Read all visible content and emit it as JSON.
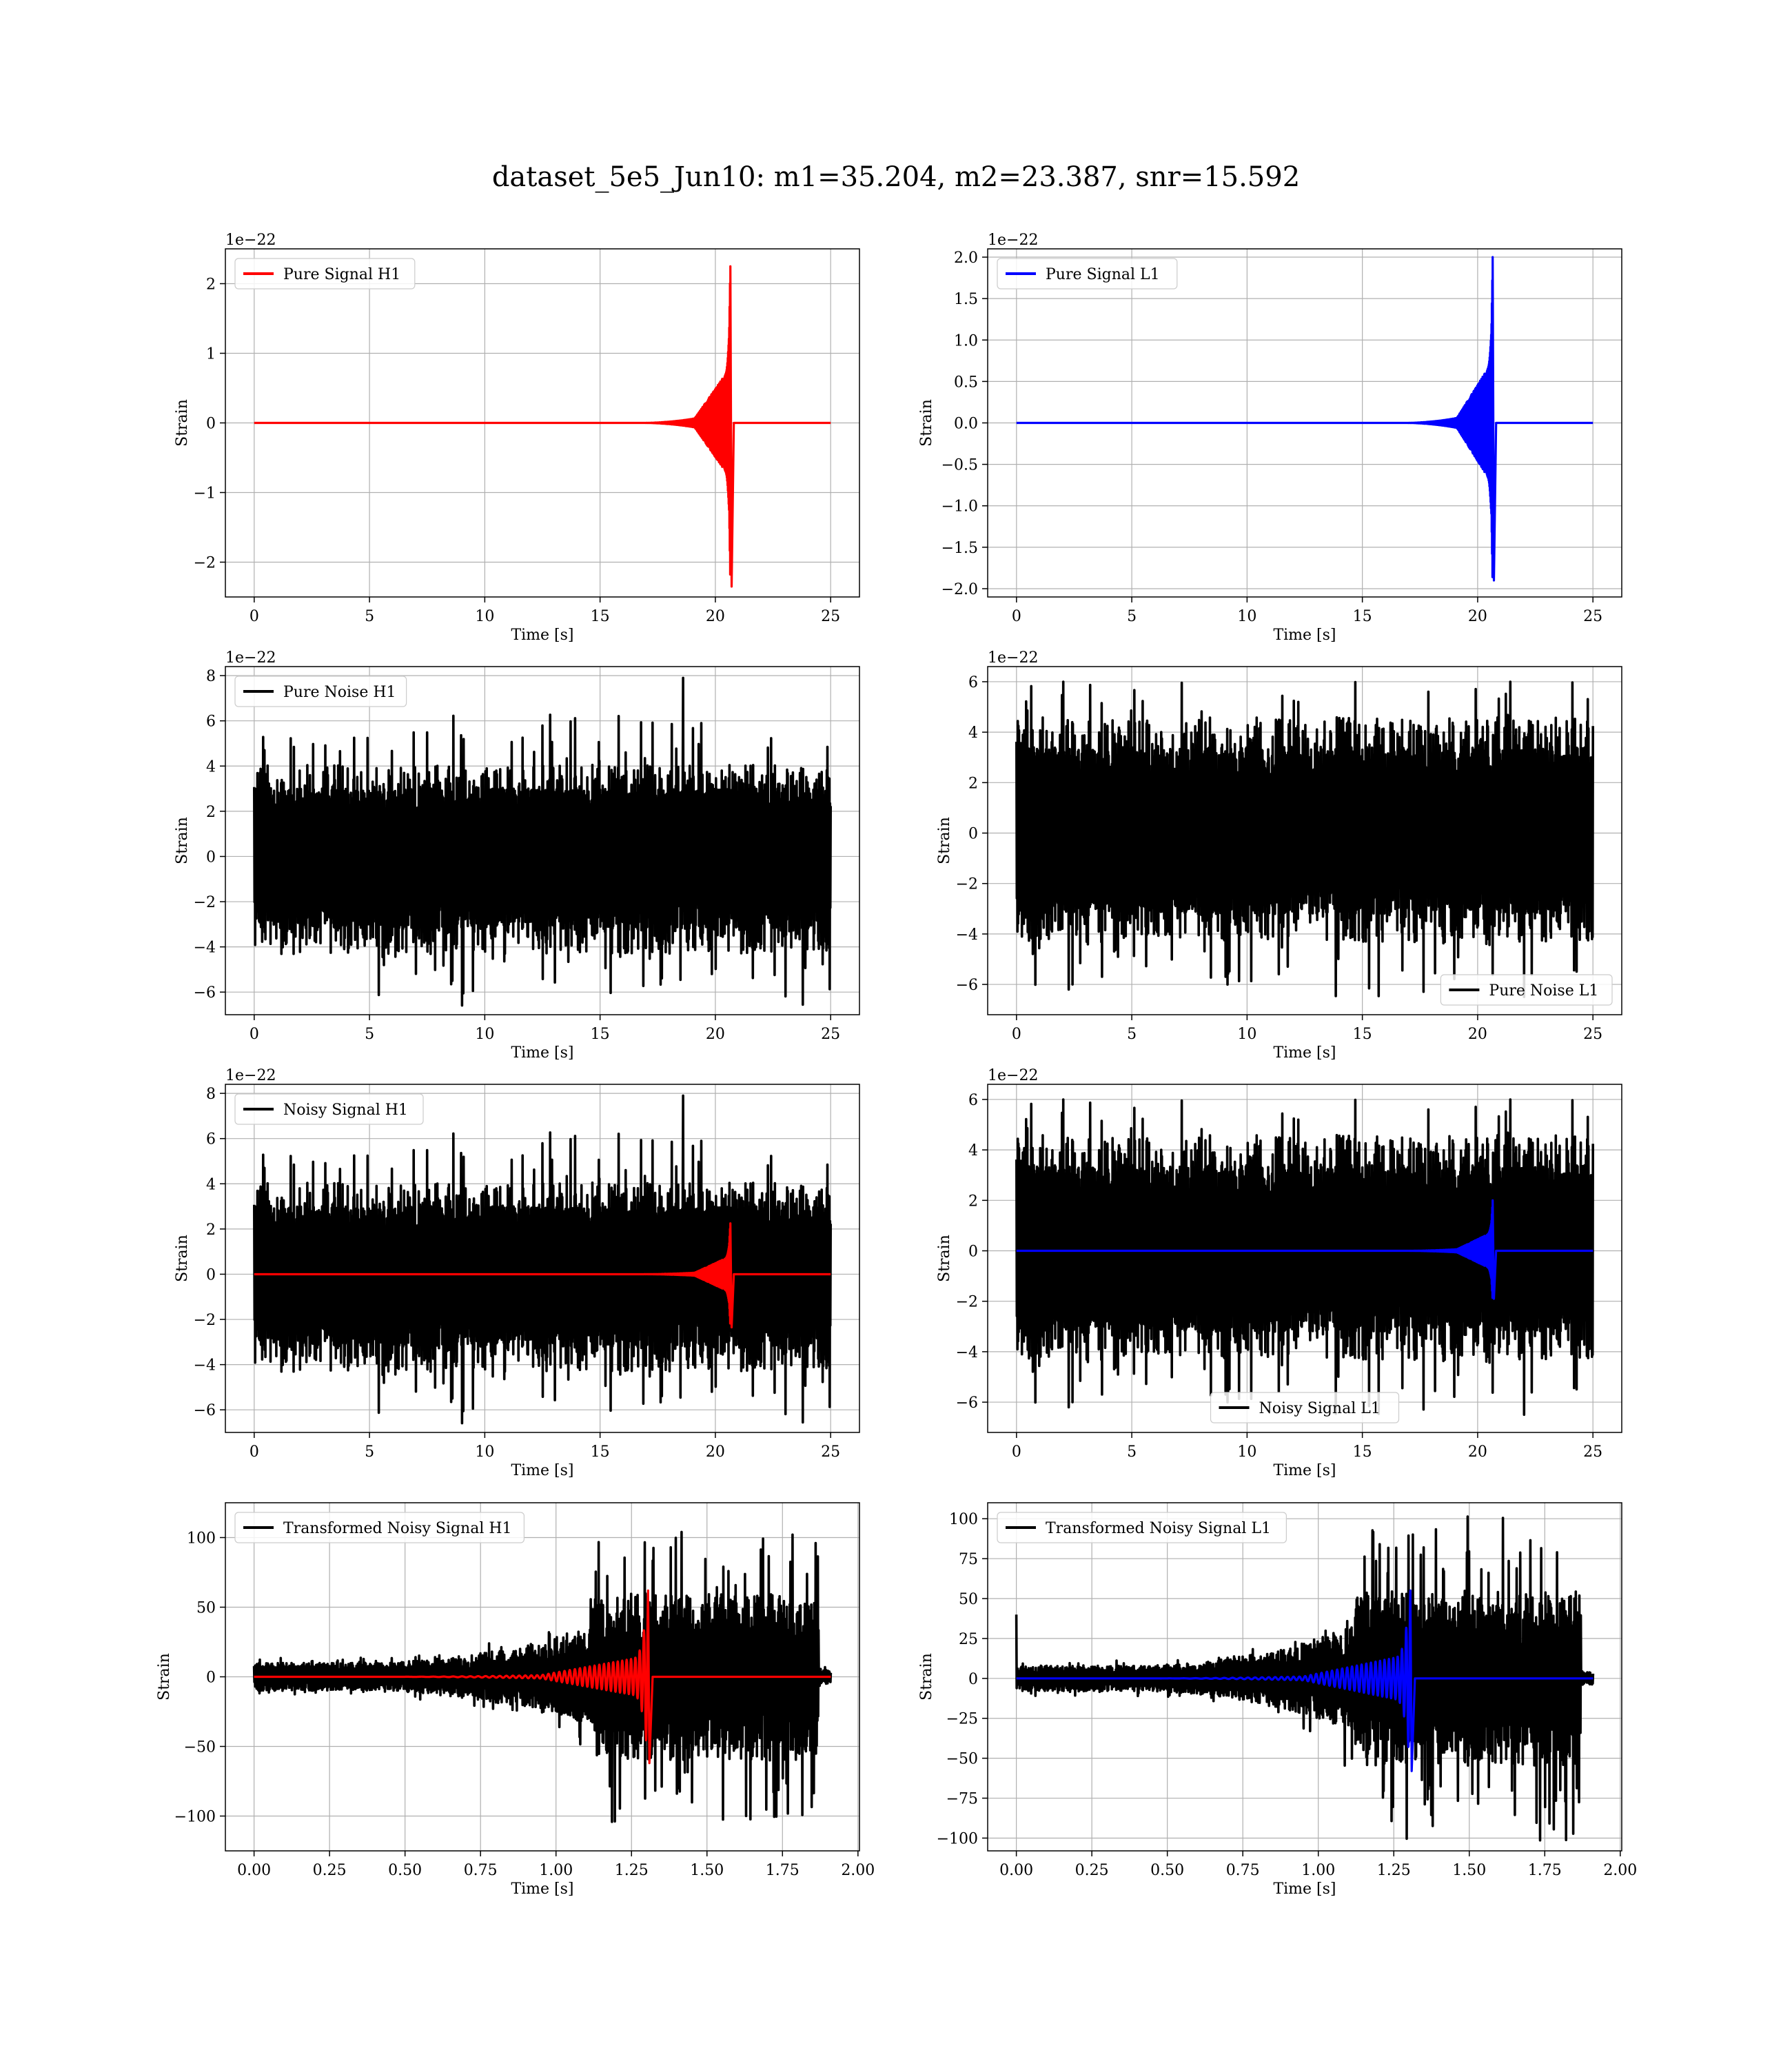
{
  "figure": {
    "suptitle": "dataset_5e5_Jun10: m1=35.204, m2=23.387, snr=15.592"
  },
  "chart_data": [
    {
      "id": "pure-signal-h1",
      "type": "line",
      "xlabel": "Time [s]",
      "ylabel": "Strain",
      "offset_text": "1e−22",
      "xlim": [
        -1.25,
        26.25
      ],
      "ylim": [
        -2.5,
        2.5
      ],
      "xticks": [
        0,
        5,
        10,
        15,
        20,
        25
      ],
      "xtick_labels": [
        "0",
        "5",
        "10",
        "15",
        "20",
        "25"
      ],
      "yticks": [
        -2,
        -1,
        0,
        1,
        2
      ],
      "ytick_labels": [
        "−2",
        "−1",
        "0",
        "1",
        "2"
      ],
      "grid": true,
      "legend": {
        "placement": "upper-left",
        "entries": [
          {
            "label": "Pure Signal H1",
            "color": "#ff0000"
          }
        ]
      },
      "series": [
        {
          "name": "Pure Signal H1",
          "color": "#ff0000",
          "kind": "chirp",
          "x_start": 0,
          "x_end": 25,
          "peak_x": 20.65,
          "peak_top": 2.25,
          "peak_bottom": -2.35,
          "inspiral_amp": 0.8,
          "inspiral_start": 19.1,
          "quiet_amp": 0.0,
          "ringdown_x": 20.8
        }
      ]
    },
    {
      "id": "pure-signal-l1",
      "type": "line",
      "xlabel": "Time [s]",
      "ylabel": "Strain",
      "offset_text": "1e−22",
      "xlim": [
        -1.25,
        26.25
      ],
      "ylim": [
        -2.1,
        2.1
      ],
      "xticks": [
        0,
        5,
        10,
        15,
        20,
        25
      ],
      "xtick_labels": [
        "0",
        "5",
        "10",
        "15",
        "20",
        "25"
      ],
      "yticks": [
        -2.0,
        -1.5,
        -1.0,
        -0.5,
        0.0,
        0.5,
        1.0,
        1.5,
        2.0
      ],
      "ytick_labels": [
        "−2.0",
        "−1.5",
        "−1.0",
        "−0.5",
        "0.0",
        "0.5",
        "1.0",
        "1.5",
        "2.0"
      ],
      "grid": true,
      "legend": {
        "placement": "upper-left",
        "entries": [
          {
            "label": "Pure Signal L1",
            "color": "#0000ff"
          }
        ]
      },
      "series": [
        {
          "name": "Pure Signal L1",
          "color": "#0000ff",
          "kind": "chirp",
          "x_start": 0,
          "x_end": 25,
          "peak_x": 20.65,
          "peak_top": 2.0,
          "peak_bottom": -1.9,
          "inspiral_amp": 0.75,
          "inspiral_start": 19.1,
          "quiet_amp": 0.0,
          "ringdown_x": 20.8
        }
      ]
    },
    {
      "id": "pure-noise-h1",
      "type": "line",
      "xlabel": "Time [s]",
      "ylabel": "Strain",
      "offset_text": "1e−22",
      "xlim": [
        -1.25,
        26.25
      ],
      "ylim": [
        -7.0,
        8.4
      ],
      "xticks": [
        0,
        5,
        10,
        15,
        20,
        25
      ],
      "xtick_labels": [
        "0",
        "5",
        "10",
        "15",
        "20",
        "25"
      ],
      "yticks": [
        -6,
        -4,
        -2,
        0,
        2,
        4,
        6,
        8
      ],
      "ytick_labels": [
        "−6",
        "−4",
        "−2",
        "0",
        "2",
        "4",
        "6",
        "8"
      ],
      "grid": true,
      "legend": {
        "placement": "upper-left",
        "entries": [
          {
            "label": "Pure Noise H1",
            "color": "#000000"
          }
        ]
      },
      "series": [
        {
          "name": "Pure Noise H1",
          "color": "#000000",
          "kind": "noise",
          "x_start": 0,
          "x_end": 25,
          "core_top": 3.0,
          "core_bottom": -3.2,
          "spike_max": 6.3,
          "spike_min": -6.6,
          "outlier_x": 18.6,
          "outlier_y": 7.9,
          "seed": 11
        }
      ]
    },
    {
      "id": "pure-noise-l1",
      "type": "line",
      "xlabel": "Time [s]",
      "ylabel": "Strain",
      "offset_text": "1e−22",
      "xlim": [
        -1.25,
        26.25
      ],
      "ylim": [
        -7.2,
        6.6
      ],
      "xticks": [
        0,
        5,
        10,
        15,
        20,
        25
      ],
      "xtick_labels": [
        "0",
        "5",
        "10",
        "15",
        "20",
        "25"
      ],
      "yticks": [
        -6,
        -4,
        -2,
        0,
        2,
        4,
        6
      ],
      "ytick_labels": [
        "−6",
        "−4",
        "−2",
        "0",
        "2",
        "4",
        "6"
      ],
      "grid": true,
      "legend": {
        "placement": "lower-right",
        "entries": [
          {
            "label": "Pure Noise L1",
            "color": "#000000"
          }
        ]
      },
      "series": [
        {
          "name": "Pure Noise L1",
          "color": "#000000",
          "kind": "noise",
          "x_start": 0,
          "x_end": 25,
          "core_top": 3.4,
          "core_bottom": -3.2,
          "spike_max": 6.0,
          "spike_min": -6.5,
          "outlier_x": -1,
          "outlier_y": 0,
          "seed": 23
        }
      ]
    },
    {
      "id": "noisy-signal-h1",
      "type": "line",
      "xlabel": "Time [s]",
      "ylabel": "Strain",
      "offset_text": "1e−22",
      "xlim": [
        -1.25,
        26.25
      ],
      "ylim": [
        -7.0,
        8.4
      ],
      "xticks": [
        0,
        5,
        10,
        15,
        20,
        25
      ],
      "xtick_labels": [
        "0",
        "5",
        "10",
        "15",
        "20",
        "25"
      ],
      "yticks": [
        -6,
        -4,
        -2,
        0,
        2,
        4,
        6,
        8
      ],
      "ytick_labels": [
        "−6",
        "−4",
        "−2",
        "0",
        "2",
        "4",
        "6",
        "8"
      ],
      "grid": true,
      "legend": {
        "placement": "upper-left",
        "entries": [
          {
            "label": "Noisy Signal H1",
            "color": "#000000"
          }
        ]
      },
      "series": [
        {
          "name": "Noisy Signal H1",
          "color": "#000000",
          "kind": "noise",
          "x_start": 0,
          "x_end": 25,
          "core_top": 3.0,
          "core_bottom": -3.2,
          "spike_max": 6.3,
          "spike_min": -6.6,
          "outlier_x": 18.6,
          "outlier_y": 7.9,
          "seed": 11
        },
        {
          "name": "",
          "color": "#ff0000",
          "kind": "chirp",
          "x_start": 0,
          "x_end": 25,
          "peak_x": 20.65,
          "peak_top": 2.25,
          "peak_bottom": -2.35,
          "inspiral_amp": 0.8,
          "inspiral_start": 19.1,
          "quiet_amp": 0.0,
          "ringdown_x": 20.8
        }
      ]
    },
    {
      "id": "noisy-signal-l1",
      "type": "line",
      "xlabel": "Time [s]",
      "ylabel": "Strain",
      "offset_text": "1e−22",
      "xlim": [
        -1.25,
        26.25
      ],
      "ylim": [
        -7.2,
        6.6
      ],
      "xticks": [
        0,
        5,
        10,
        15,
        20,
        25
      ],
      "xtick_labels": [
        "0",
        "5",
        "10",
        "15",
        "20",
        "25"
      ],
      "yticks": [
        -6,
        -4,
        -2,
        0,
        2,
        4,
        6
      ],
      "ytick_labels": [
        "−6",
        "−4",
        "−2",
        "0",
        "2",
        "4",
        "6"
      ],
      "grid": true,
      "legend": {
        "placement": "lower-center",
        "entries": [
          {
            "label": "Noisy Signal L1",
            "color": "#000000"
          }
        ]
      },
      "series": [
        {
          "name": "Noisy Signal L1",
          "color": "#000000",
          "kind": "noise",
          "x_start": 0,
          "x_end": 25,
          "core_top": 3.4,
          "core_bottom": -3.2,
          "spike_max": 6.0,
          "spike_min": -6.5,
          "outlier_x": -1,
          "outlier_y": 0,
          "seed": 23
        },
        {
          "name": "",
          "color": "#0000ff",
          "kind": "chirp",
          "x_start": 0,
          "x_end": 25,
          "peak_x": 20.65,
          "peak_top": 2.0,
          "peak_bottom": -1.9,
          "inspiral_amp": 0.75,
          "inspiral_start": 19.1,
          "quiet_amp": 0.0,
          "ringdown_x": 20.8
        }
      ]
    },
    {
      "id": "transformed-noisy-signal-h1",
      "type": "line",
      "xlabel": "Time [s]",
      "ylabel": "Strain",
      "offset_text": "",
      "xlim": [
        -0.095,
        2.005
      ],
      "ylim": [
        -125,
        125
      ],
      "xticks": [
        0.0,
        0.25,
        0.5,
        0.75,
        1.0,
        1.25,
        1.5,
        1.75,
        2.0
      ],
      "xtick_labels": [
        "0.00",
        "0.25",
        "0.50",
        "0.75",
        "1.00",
        "1.25",
        "1.50",
        "1.75",
        "2.00"
      ],
      "yticks": [
        -100,
        -50,
        0,
        50,
        100
      ],
      "ytick_labels": [
        "−100",
        "−50",
        "0",
        "50",
        "100"
      ],
      "grid": true,
      "legend": {
        "placement": "upper-left",
        "entries": [
          {
            "label": "Transformed Noisy Signal H1",
            "color": "#000000"
          }
        ]
      },
      "series": [
        {
          "name": "Transformed Noisy Signal H1",
          "color": "#000000",
          "kind": "whitened",
          "x_start": 0,
          "x_end": 1.91,
          "low_amp": 10,
          "high_amp": 60,
          "ramp_start": 0.35,
          "ramp_end": 1.12,
          "max_spike": 105,
          "drop_x": 1.87,
          "tail_amp": 5,
          "seed": 37
        },
        {
          "name": "",
          "color": "#ff0000",
          "kind": "chirp",
          "x_start": 0,
          "x_end": 1.91,
          "peak_x": 1.305,
          "peak_top": 62,
          "peak_bottom": -62,
          "inspiral_amp": 15,
          "inspiral_start": 0.95,
          "quiet_amp": 0.0,
          "ringdown_x": 1.32,
          "cycles": 40
        }
      ]
    },
    {
      "id": "transformed-noisy-signal-l1",
      "type": "line",
      "xlabel": "Time [s]",
      "ylabel": "Strain",
      "offset_text": "",
      "xlim": [
        -0.095,
        2.005
      ],
      "ylim": [
        -108,
        110
      ],
      "xticks": [
        0.0,
        0.25,
        0.5,
        0.75,
        1.0,
        1.25,
        1.5,
        1.75,
        2.0
      ],
      "xtick_labels": [
        "0.00",
        "0.25",
        "0.50",
        "0.75",
        "1.00",
        "1.25",
        "1.50",
        "1.75",
        "2.00"
      ],
      "yticks": [
        -100,
        -75,
        -50,
        -25,
        0,
        25,
        50,
        75,
        100
      ],
      "ytick_labels": [
        "−100",
        "−75",
        "−50",
        "−25",
        "0",
        "25",
        "50",
        "75",
        "100"
      ],
      "grid": true,
      "legend": {
        "placement": "upper-left",
        "entries": [
          {
            "label": "Transformed Noisy Signal L1",
            "color": "#000000"
          }
        ]
      },
      "series": [
        {
          "name": "Transformed Noisy Signal L1",
          "color": "#000000",
          "kind": "whitened",
          "x_start": 0,
          "x_end": 1.91,
          "low_amp": 8,
          "high_amp": 55,
          "ramp_start": 0.4,
          "ramp_end": 1.12,
          "max_spike": 102,
          "drop_x": 1.87,
          "tail_amp": 4,
          "seed": 53,
          "start_spike": 40
        },
        {
          "name": "",
          "color": "#0000ff",
          "kind": "chirp",
          "x_start": 0,
          "x_end": 1.91,
          "peak_x": 1.305,
          "peak_top": 55,
          "peak_bottom": -58,
          "inspiral_amp": 15,
          "inspiral_start": 0.95,
          "quiet_amp": 0.0,
          "ringdown_x": 1.32,
          "cycles": 40
        }
      ]
    }
  ]
}
